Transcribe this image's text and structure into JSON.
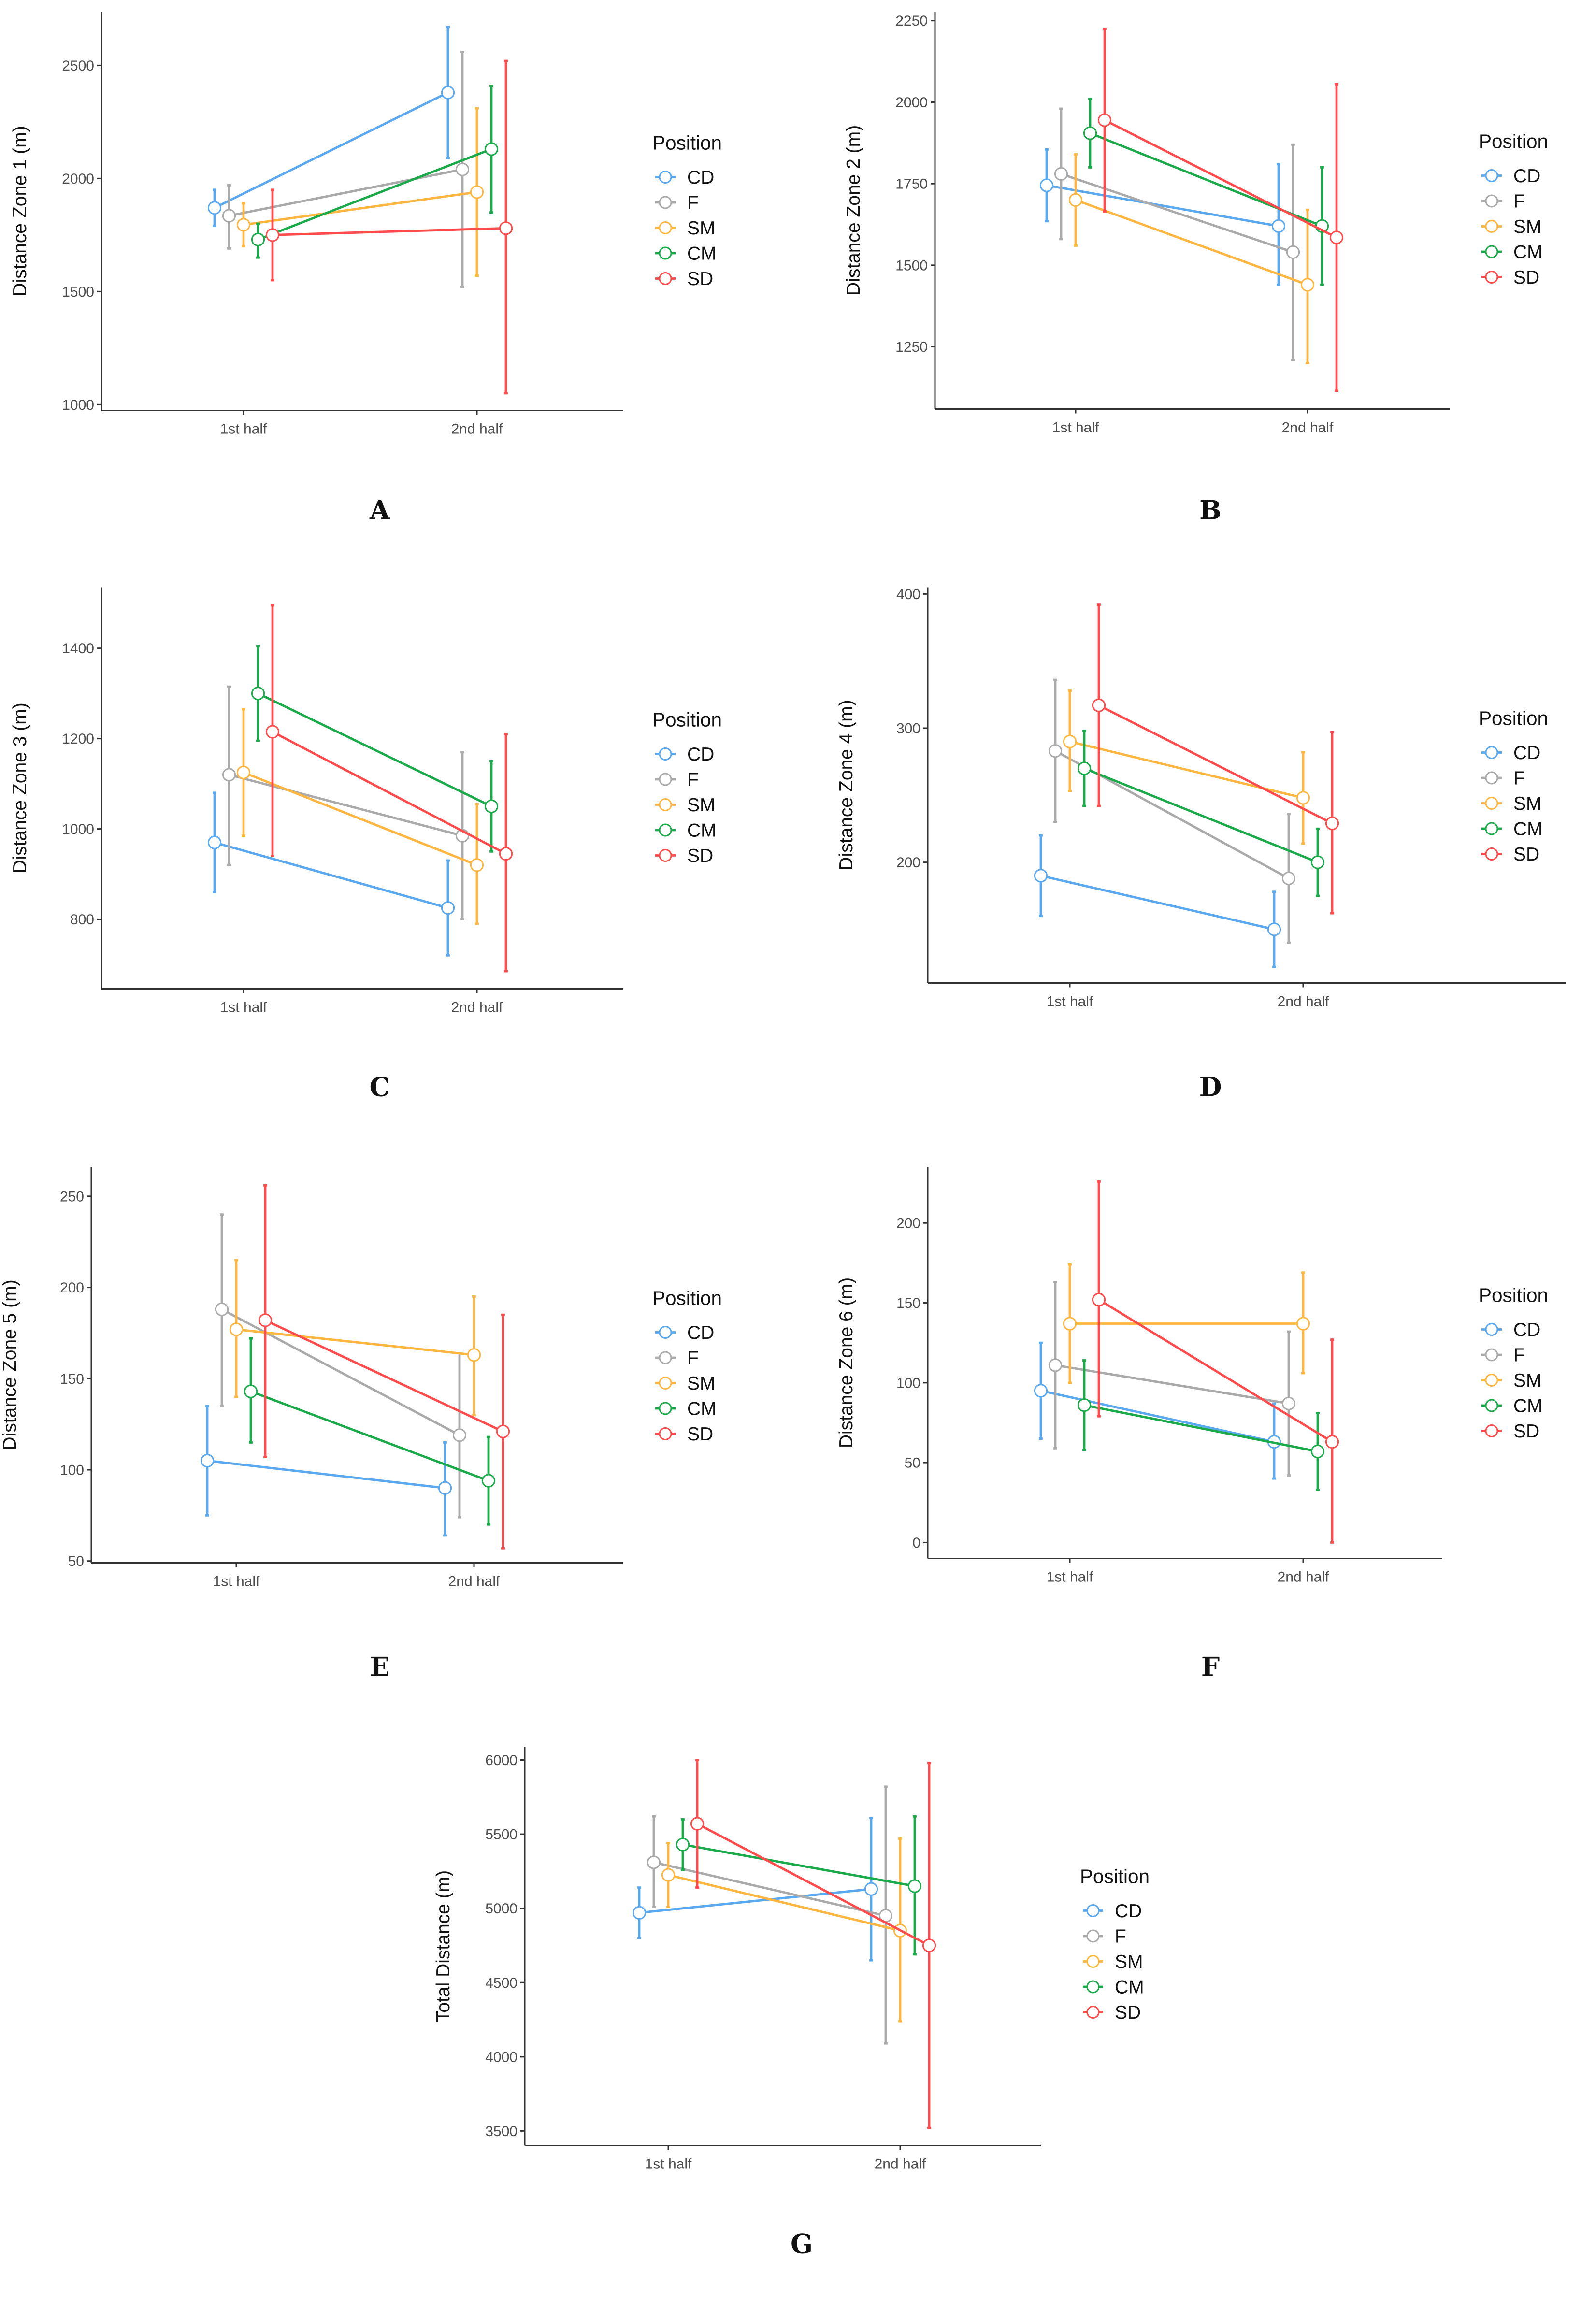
{
  "legend_title": "Position",
  "groups": [
    "CD",
    "F",
    "SM",
    "CM",
    "SD"
  ],
  "colors": {
    "CD": "#5aa9f0",
    "F": "#aaaaaa",
    "SM": "#ffb640",
    "CM": "#1aaa4a",
    "SD": "#ff4b4b"
  },
  "chart_data": [
    {
      "type": "line",
      "panel": "A",
      "ylabel": "Distance Zone 1 (m)",
      "categories": [
        "1st half",
        "2nd half"
      ],
      "yticks": [
        1000,
        1500,
        2000,
        2500
      ],
      "ylim": [
        974,
        2737
      ],
      "series": [
        {
          "name": "CD",
          "values": [
            1870,
            2380
          ],
          "lower": [
            1790,
            2090
          ],
          "upper": [
            1950,
            2670
          ]
        },
        {
          "name": "F",
          "values": [
            1835,
            2040
          ],
          "lower": [
            1690,
            1520
          ],
          "upper": [
            1970,
            2560
          ]
        },
        {
          "name": "SM",
          "values": [
            1795,
            1940
          ],
          "lower": [
            1700,
            1570
          ],
          "upper": [
            1890,
            2310
          ]
        },
        {
          "name": "CM",
          "values": [
            1730,
            2130
          ],
          "lower": [
            1650,
            1850
          ],
          "upper": [
            1800,
            2410
          ]
        },
        {
          "name": "SD",
          "values": [
            1750,
            1780
          ],
          "lower": [
            1550,
            1050
          ],
          "upper": [
            1950,
            2520
          ]
        }
      ]
    },
    {
      "type": "line",
      "panel": "B",
      "ylabel": "Distance Zone 2 (m)",
      "categories": [
        "1st half",
        "2nd half"
      ],
      "yticks": [
        1250,
        1500,
        1750,
        2000,
        2250
      ],
      "ylim": [
        1059,
        2277
      ],
      "series": [
        {
          "name": "CD",
          "values": [
            1745,
            1620
          ],
          "lower": [
            1635,
            1440
          ],
          "upper": [
            1855,
            1810
          ]
        },
        {
          "name": "F",
          "values": [
            1780,
            1540
          ],
          "lower": [
            1580,
            1210
          ],
          "upper": [
            1980,
            1870
          ]
        },
        {
          "name": "SM",
          "values": [
            1700,
            1440
          ],
          "lower": [
            1560,
            1200
          ],
          "upper": [
            1840,
            1670
          ]
        },
        {
          "name": "CM",
          "values": [
            1905,
            1620
          ],
          "lower": [
            1800,
            1440
          ],
          "upper": [
            2010,
            1800
          ]
        },
        {
          "name": "SD",
          "values": [
            1945,
            1585
          ],
          "lower": [
            1665,
            1115
          ],
          "upper": [
            2225,
            2055
          ]
        }
      ]
    },
    {
      "type": "line",
      "panel": "C",
      "ylabel": "Distance Zone 3 (m)",
      "categories": [
        "1st half",
        "2nd half"
      ],
      "yticks": [
        800,
        1000,
        1200,
        1400
      ],
      "ylim": [
        646,
        1535
      ],
      "series": [
        {
          "name": "CD",
          "values": [
            970,
            825
          ],
          "lower": [
            860,
            720
          ],
          "upper": [
            1080,
            930
          ]
        },
        {
          "name": "F",
          "values": [
            1120,
            985
          ],
          "lower": [
            920,
            800
          ],
          "upper": [
            1315,
            1170
          ]
        },
        {
          "name": "SM",
          "values": [
            1125,
            920
          ],
          "lower": [
            985,
            790
          ],
          "upper": [
            1265,
            1055
          ]
        },
        {
          "name": "CM",
          "values": [
            1300,
            1050
          ],
          "lower": [
            1195,
            950
          ],
          "upper": [
            1405,
            1150
          ]
        },
        {
          "name": "SD",
          "values": [
            1215,
            945
          ],
          "lower": [
            940,
            685
          ],
          "upper": [
            1495,
            1210
          ]
        }
      ]
    },
    {
      "type": "line",
      "panel": "D",
      "ylabel": "Distance Zone 4 (m)",
      "categories": [
        "1st half",
        "2nd half"
      ],
      "yticks": [
        200,
        300,
        400
      ],
      "ylim": [
        110,
        405
      ],
      "series": [
        {
          "name": "CD",
          "values": [
            190,
            150
          ],
          "lower": [
            160,
            122
          ],
          "upper": [
            220,
            178
          ]
        },
        {
          "name": "F",
          "values": [
            283,
            188
          ],
          "lower": [
            230,
            140
          ],
          "upper": [
            336,
            236
          ]
        },
        {
          "name": "SM",
          "values": [
            290,
            248
          ],
          "lower": [
            253,
            214
          ],
          "upper": [
            328,
            282
          ]
        },
        {
          "name": "CM",
          "values": [
            270,
            200
          ],
          "lower": [
            242,
            175
          ],
          "upper": [
            298,
            225
          ]
        },
        {
          "name": "SD",
          "values": [
            317,
            229
          ],
          "lower": [
            242,
            162
          ],
          "upper": [
            392,
            297
          ]
        }
      ]
    },
    {
      "type": "line",
      "panel": "E",
      "ylabel": "Distance Zone 5 (m)",
      "categories": [
        "1st half",
        "2nd half"
      ],
      "yticks": [
        50,
        100,
        150,
        200,
        250
      ],
      "ylim": [
        49,
        266
      ],
      "series": [
        {
          "name": "CD",
          "values": [
            105,
            90
          ],
          "lower": [
            75,
            64
          ],
          "upper": [
            135,
            115
          ]
        },
        {
          "name": "F",
          "values": [
            188,
            119
          ],
          "lower": [
            135,
            74
          ],
          "upper": [
            240,
            164
          ]
        },
        {
          "name": "SM",
          "values": [
            177,
            163
          ],
          "lower": [
            140,
            130
          ],
          "upper": [
            215,
            195
          ]
        },
        {
          "name": "CM",
          "values": [
            143,
            94
          ],
          "lower": [
            115,
            70
          ],
          "upper": [
            172,
            118
          ]
        },
        {
          "name": "SD",
          "values": [
            182,
            121
          ],
          "lower": [
            107,
            57
          ],
          "upper": [
            256,
            185
          ]
        }
      ]
    },
    {
      "type": "line",
      "panel": "F",
      "ylabel": "Distance Zone 6 (m)",
      "categories": [
        "1st half",
        "2nd half"
      ],
      "yticks": [
        0,
        50,
        100,
        150,
        200
      ],
      "ylim": [
        -10,
        235
      ],
      "series": [
        {
          "name": "CD",
          "values": [
            95,
            63
          ],
          "lower": [
            65,
            40
          ],
          "upper": [
            125,
            87
          ]
        },
        {
          "name": "F",
          "values": [
            111,
            87
          ],
          "lower": [
            59,
            42
          ],
          "upper": [
            163,
            132
          ]
        },
        {
          "name": "SM",
          "values": [
            137,
            137
          ],
          "lower": [
            100,
            106
          ],
          "upper": [
            174,
            169
          ]
        },
        {
          "name": "CM",
          "values": [
            86,
            57
          ],
          "lower": [
            58,
            33
          ],
          "upper": [
            114,
            81
          ]
        },
        {
          "name": "SD",
          "values": [
            152,
            63
          ],
          "lower": [
            79,
            0
          ],
          "upper": [
            226,
            127
          ]
        }
      ]
    },
    {
      "type": "line",
      "panel": "G",
      "ylabel": "Total Distance (m)",
      "categories": [
        "1st half",
        "2nd half"
      ],
      "yticks": [
        3500,
        4000,
        4500,
        5000,
        5500,
        6000
      ],
      "ylim": [
        3402,
        6088
      ],
      "series": [
        {
          "name": "CD",
          "values": [
            4970,
            5130
          ],
          "lower": [
            4800,
            4650
          ],
          "upper": [
            5140,
            5610
          ]
        },
        {
          "name": "F",
          "values": [
            5310,
            4950
          ],
          "lower": [
            5010,
            4090
          ],
          "upper": [
            5620,
            5820
          ]
        },
        {
          "name": "SM",
          "values": [
            5225,
            4850
          ],
          "lower": [
            5010,
            4240
          ],
          "upper": [
            5440,
            5470
          ]
        },
        {
          "name": "CM",
          "values": [
            5430,
            5150
          ],
          "lower": [
            5260,
            4690
          ],
          "upper": [
            5600,
            5620
          ]
        },
        {
          "name": "SD",
          "values": [
            5570,
            4750
          ],
          "lower": [
            5140,
            3520
          ],
          "upper": [
            6000,
            5980
          ]
        }
      ]
    }
  ]
}
